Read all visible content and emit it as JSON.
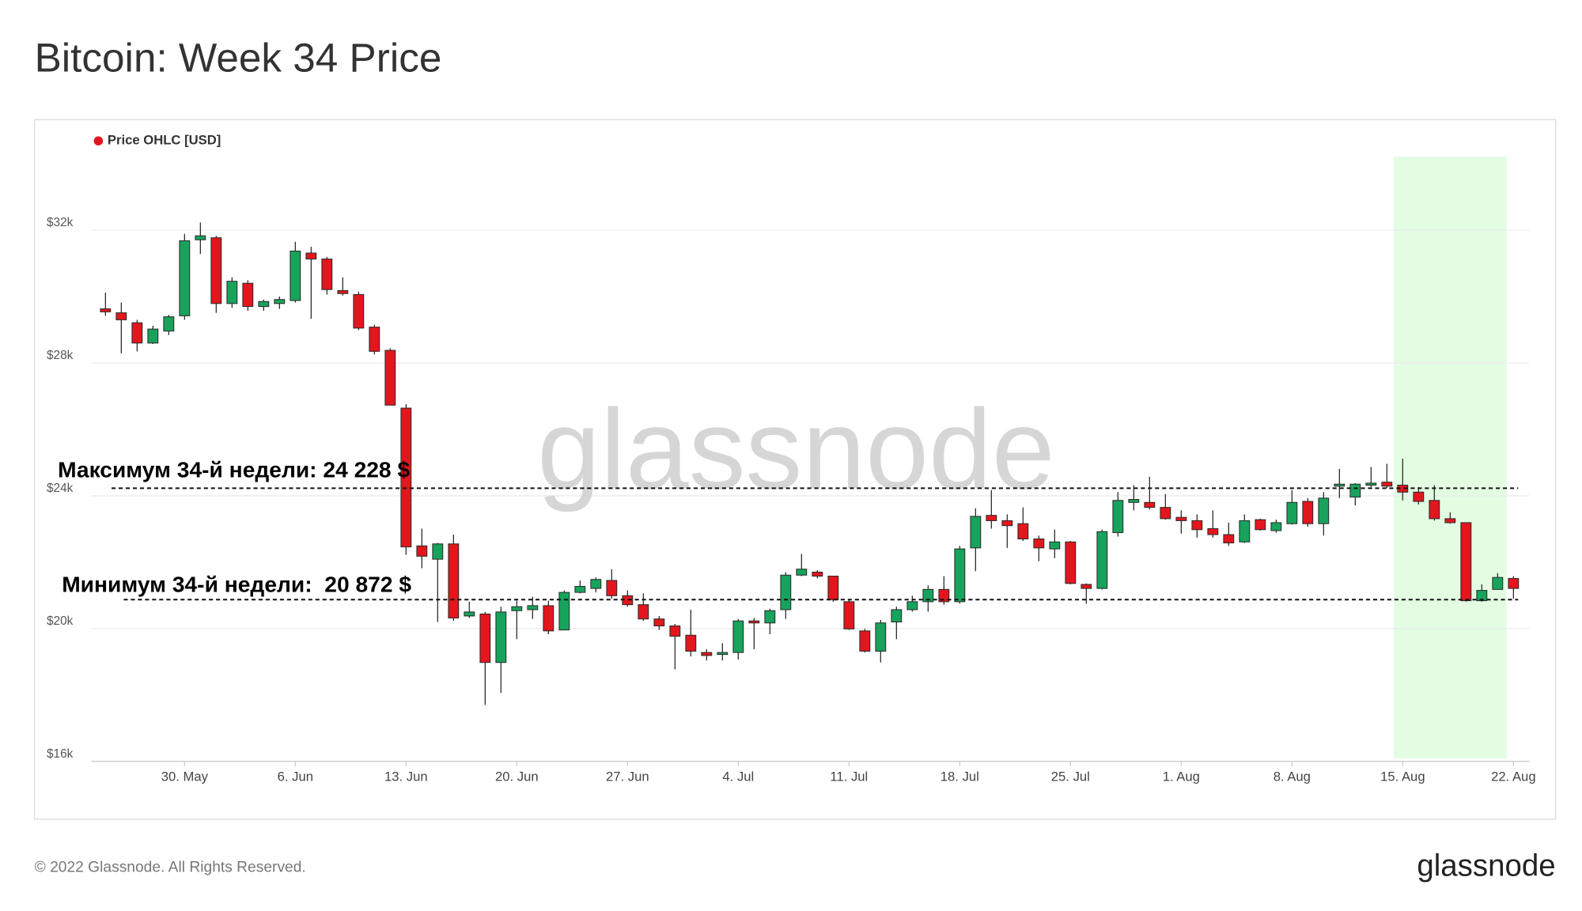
{
  "chart_data": {
    "type": "candlestick",
    "title": "Bitcoin: Week 34 Price",
    "categories": [
      null,
      null,
      null,
      null,
      null,
      "30. May",
      null,
      null,
      null,
      null,
      null,
      null,
      "6. Jun",
      null,
      null,
      null,
      null,
      null,
      null,
      "13. Jun",
      null,
      null,
      null,
      null,
      null,
      null,
      "20. Jun",
      null,
      null,
      null,
      null,
      null,
      null,
      "27. Jun",
      null,
      null,
      null,
      null,
      null,
      null,
      "4. Jul",
      null,
      null,
      null,
      null,
      null,
      null,
      "11. Jul",
      null,
      null,
      null,
      null,
      null,
      null,
      "18. Jul",
      null,
      null,
      null,
      null,
      null,
      null,
      "25. Jul",
      null,
      null,
      null,
      null,
      null,
      null,
      "1. Aug",
      null,
      null,
      null,
      null,
      null,
      null,
      "8. Aug",
      null,
      null,
      null,
      null,
      null,
      null,
      "15. Aug",
      null,
      null,
      null,
      null,
      null,
      null,
      "22. Aug"
    ],
    "series": [
      {
        "name": "Price OHLC [USD]",
        "color": "#e3161d",
        "up_color": "#17a35c",
        "down_color": "#e3161d",
        "open": [
          29630,
          29510,
          29210,
          28600,
          28960,
          29420,
          31710,
          31770,
          29790,
          30400,
          29700,
          29790,
          29880,
          31310,
          31130,
          30180,
          30060,
          29080,
          28380,
          26640,
          22490,
          22090,
          22550,
          20380,
          20440,
          18980,
          20540,
          20570,
          20690,
          19960,
          21090,
          21210,
          21450,
          20990,
          20720,
          20290,
          20080,
          19800,
          19280,
          19220,
          19280,
          20230,
          20170,
          20570,
          21610,
          21700,
          21580,
          20810,
          19930,
          19320,
          20200,
          20570,
          20810,
          21180,
          20810,
          22430,
          23410,
          23250,
          23160,
          22700,
          22400,
          22610,
          21330,
          21210,
          22890,
          23800,
          23800,
          23650,
          23350,
          23250,
          23010,
          22830,
          22610,
          23280,
          22950,
          23160,
          23830,
          23160,
          24290,
          23960,
          24320,
          24410,
          24320,
          24110,
          23860,
          23310,
          23190,
          20840,
          21180,
          21510
        ],
        "high": [
          30120,
          29820,
          29300,
          29120,
          29450,
          31890,
          32230,
          31830,
          30580,
          30490,
          29910,
          30000,
          31650,
          31500,
          31190,
          30580,
          30150,
          29150,
          28440,
          26760,
          23010,
          22580,
          22830,
          20810,
          20500,
          20660,
          20840,
          20960,
          20840,
          21150,
          21450,
          21540,
          21790,
          21150,
          21060,
          20380,
          20140,
          20570,
          19380,
          19560,
          20290,
          20320,
          20600,
          21700,
          22250,
          21760,
          21580,
          20870,
          19990,
          20260,
          20660,
          20990,
          21300,
          21580,
          22490,
          23620,
          24170,
          23440,
          23650,
          22800,
          22980,
          22640,
          21360,
          22980,
          24110,
          24320,
          24570,
          24050,
          23560,
          23440,
          23560,
          23190,
          23440,
          23310,
          23280,
          24170,
          23930,
          24110,
          24810,
          24380,
          24870,
          24960,
          25120,
          24260,
          24320,
          23500,
          23190,
          21330,
          21670,
          21580
        ],
        "low": [
          29420,
          28290,
          28350,
          28570,
          28840,
          29300,
          31280,
          29510,
          29660,
          29570,
          29570,
          29630,
          29820,
          29330,
          30060,
          30030,
          28990,
          28260,
          26730,
          22220,
          21820,
          20200,
          20230,
          20320,
          17700,
          18060,
          19680,
          20290,
          19830,
          19960,
          21060,
          21090,
          20900,
          20660,
          20230,
          19960,
          18770,
          19160,
          19040,
          19040,
          19070,
          19380,
          19830,
          20290,
          21580,
          21510,
          20810,
          19960,
          19280,
          18980,
          19680,
          20510,
          20510,
          20720,
          20750,
          21730,
          23010,
          22430,
          22640,
          22030,
          22120,
          21330,
          20750,
          21180,
          22770,
          23560,
          23590,
          23280,
          22860,
          22740,
          22740,
          22490,
          22580,
          22950,
          22890,
          23130,
          23070,
          22800,
          23930,
          23710,
          24260,
          24230,
          23860,
          23740,
          23250,
          23160,
          20810,
          20810,
          21180,
          20900
        ],
        "close": [
          29540,
          29300,
          28600,
          29020,
          29390,
          31680,
          31830,
          29790,
          30460,
          29700,
          29850,
          29910,
          31370,
          31130,
          30210,
          30090,
          29050,
          28350,
          26730,
          22460,
          22180,
          22550,
          20320,
          20500,
          18980,
          20500,
          20660,
          20690,
          19930,
          21090,
          21270,
          21480,
          20990,
          20720,
          20290,
          20080,
          19770,
          19320,
          19190,
          19280,
          20230,
          20170,
          20540,
          21610,
          21790,
          21580,
          20870,
          19990,
          19320,
          20170,
          20570,
          20810,
          21180,
          20810,
          22400,
          23380,
          23250,
          23100,
          22700,
          22430,
          22610,
          21360,
          21210,
          22920,
          23860,
          23890,
          23650,
          23310,
          23250,
          22980,
          22830,
          22580,
          23250,
          22980,
          23190,
          23800,
          23160,
          23930,
          24350,
          24350,
          24380,
          24290,
          24110,
          23830,
          23310,
          23190,
          20840,
          21150,
          21540,
          21210
        ]
      }
    ],
    "ylim": [
      16000,
      34000
    ],
    "yticks": [
      {
        "value": 16000,
        "label": "$16k"
      },
      {
        "value": 20000,
        "label": "$20k"
      },
      {
        "value": 24000,
        "label": "$24k"
      },
      {
        "value": 28000,
        "label": "$28k"
      },
      {
        "value": 32000,
        "label": "$32k"
      }
    ],
    "grid": true,
    "legend": "top-left",
    "highlight": {
      "start": 82,
      "end": 88,
      "color": "#e2fde2"
    },
    "levels": [
      {
        "label": "Максимум 34-й недели: 24 228 $",
        "value": 24228
      },
      {
        "label": "Минимум 34-й недели:  20 872 $",
        "value": 20872
      }
    ],
    "watermark": "glassnode"
  },
  "footer": {
    "copyright": "© 2022 Glassnode. All Rights Reserved.",
    "logo": "glassnode"
  }
}
